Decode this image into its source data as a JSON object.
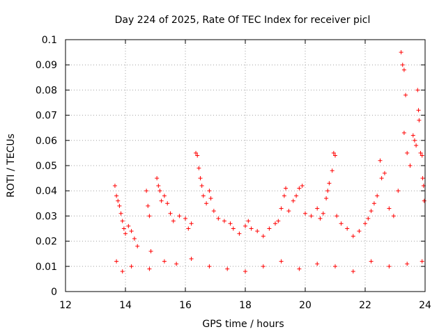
{
  "chart_data": {
    "type": "scatter",
    "title": "Day 224 of 2025, Rate Of TEC Index for receiver picl",
    "xlabel": "GPS time / hours",
    "ylabel": "ROTI / TECUs",
    "xlim": [
      12,
      24
    ],
    "ylim": [
      0,
      0.1
    ],
    "xticks": [
      12,
      14,
      16,
      18,
      20,
      22,
      24
    ],
    "xtick_labels": [
      "12",
      "14",
      "16",
      "18",
      "20",
      "22",
      "24"
    ],
    "yticks": [
      0,
      0.01,
      0.02,
      0.03,
      0.04,
      0.05,
      0.06,
      0.07,
      0.08,
      0.09,
      0.1
    ],
    "ytick_labels": [
      "0",
      "0.01",
      "0.02",
      "0.03",
      "0.04",
      "0.05",
      "0.06",
      "0.07",
      "0.08",
      "0.09",
      "0.1"
    ],
    "grid": true,
    "marker": "+",
    "color": "#ff0000",
    "series": [
      {
        "name": "ROTI",
        "points": [
          [
            13.65,
            0.042
          ],
          [
            13.7,
            0.038
          ],
          [
            13.75,
            0.036
          ],
          [
            13.8,
            0.034
          ],
          [
            13.85,
            0.031
          ],
          [
            13.9,
            0.028
          ],
          [
            13.95,
            0.025
          ],
          [
            14.0,
            0.023
          ],
          [
            14.1,
            0.026
          ],
          [
            14.2,
            0.024
          ],
          [
            14.3,
            0.021
          ],
          [
            14.4,
            0.018
          ],
          [
            14.7,
            0.04
          ],
          [
            14.75,
            0.034
          ],
          [
            14.8,
            0.03
          ],
          [
            14.85,
            0.016
          ],
          [
            15.05,
            0.045
          ],
          [
            15.1,
            0.042
          ],
          [
            15.15,
            0.04
          ],
          [
            15.2,
            0.036
          ],
          [
            15.3,
            0.038
          ],
          [
            15.4,
            0.035
          ],
          [
            15.5,
            0.031
          ],
          [
            15.6,
            0.028
          ],
          [
            15.8,
            0.03
          ],
          [
            16.0,
            0.029
          ],
          [
            16.1,
            0.025
          ],
          [
            16.2,
            0.027
          ],
          [
            16.35,
            0.055
          ],
          [
            16.4,
            0.054
          ],
          [
            16.45,
            0.049
          ],
          [
            16.5,
            0.045
          ],
          [
            16.55,
            0.042
          ],
          [
            16.6,
            0.038
          ],
          [
            16.7,
            0.035
          ],
          [
            16.8,
            0.04
          ],
          [
            16.85,
            0.037
          ],
          [
            16.95,
            0.032
          ],
          [
            17.1,
            0.029
          ],
          [
            17.3,
            0.028
          ],
          [
            17.5,
            0.027
          ],
          [
            17.6,
            0.025
          ],
          [
            17.8,
            0.023
          ],
          [
            18.0,
            0.026
          ],
          [
            18.1,
            0.028
          ],
          [
            18.2,
            0.025
          ],
          [
            18.4,
            0.024
          ],
          [
            18.6,
            0.022
          ],
          [
            18.8,
            0.025
          ],
          [
            19.0,
            0.027
          ],
          [
            19.1,
            0.028
          ],
          [
            19.2,
            0.033
          ],
          [
            19.3,
            0.038
          ],
          [
            19.35,
            0.041
          ],
          [
            19.45,
            0.032
          ],
          [
            19.6,
            0.036
          ],
          [
            19.7,
            0.038
          ],
          [
            19.8,
            0.041
          ],
          [
            19.9,
            0.042
          ],
          [
            20.0,
            0.031
          ],
          [
            20.2,
            0.03
          ],
          [
            20.4,
            0.033
          ],
          [
            20.5,
            0.029
          ],
          [
            20.6,
            0.031
          ],
          [
            20.7,
            0.037
          ],
          [
            20.75,
            0.04
          ],
          [
            20.8,
            0.043
          ],
          [
            20.9,
            0.048
          ],
          [
            20.95,
            0.055
          ],
          [
            21.0,
            0.054
          ],
          [
            21.05,
            0.03
          ],
          [
            21.2,
            0.027
          ],
          [
            21.4,
            0.025
          ],
          [
            21.6,
            0.022
          ],
          [
            21.8,
            0.024
          ],
          [
            22.0,
            0.027
          ],
          [
            22.1,
            0.029
          ],
          [
            22.2,
            0.032
          ],
          [
            22.3,
            0.035
          ],
          [
            22.4,
            0.038
          ],
          [
            22.5,
            0.052
          ],
          [
            22.55,
            0.045
          ],
          [
            22.65,
            0.047
          ],
          [
            22.8,
            0.033
          ],
          [
            22.95,
            0.03
          ],
          [
            23.1,
            0.04
          ],
          [
            23.2,
            0.095
          ],
          [
            23.25,
            0.09
          ],
          [
            23.3,
            0.088
          ],
          [
            23.35,
            0.078
          ],
          [
            23.3,
            0.063
          ],
          [
            23.4,
            0.055
          ],
          [
            23.5,
            0.05
          ],
          [
            23.6,
            0.062
          ],
          [
            23.65,
            0.06
          ],
          [
            23.7,
            0.058
          ],
          [
            23.75,
            0.08
          ],
          [
            23.78,
            0.072
          ],
          [
            23.8,
            0.068
          ],
          [
            23.85,
            0.055
          ],
          [
            23.9,
            0.054
          ],
          [
            23.92,
            0.045
          ],
          [
            23.95,
            0.042
          ],
          [
            23.97,
            0.036
          ],
          [
            13.7,
            0.012
          ],
          [
            13.9,
            0.008
          ],
          [
            14.2,
            0.01
          ],
          [
            14.8,
            0.009
          ],
          [
            15.3,
            0.012
          ],
          [
            15.7,
            0.011
          ],
          [
            16.2,
            0.013
          ],
          [
            16.8,
            0.01
          ],
          [
            17.4,
            0.009
          ],
          [
            18.0,
            0.008
          ],
          [
            18.6,
            0.01
          ],
          [
            19.2,
            0.012
          ],
          [
            19.8,
            0.009
          ],
          [
            20.4,
            0.011
          ],
          [
            21.0,
            0.01
          ],
          [
            21.6,
            0.008
          ],
          [
            22.2,
            0.012
          ],
          [
            22.8,
            0.01
          ],
          [
            23.4,
            0.011
          ],
          [
            23.9,
            0.012
          ]
        ]
      }
    ]
  }
}
